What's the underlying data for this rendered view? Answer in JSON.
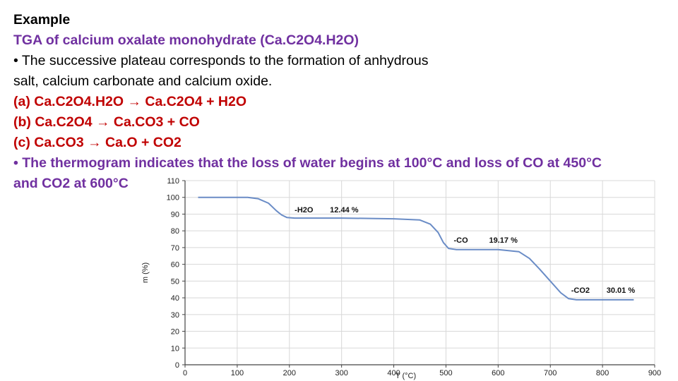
{
  "slide": {
    "heading": "Example",
    "subtitle": "TGA of calcium oxalate monohydrate (Ca.C2O4.H2O)",
    "bullet1_line1": "• The successive plateau corresponds to the formation of anhydrous",
    "bullet1_line2": "salt, calcium carbonate and calcium oxide.",
    "reaction_a": "(a) Ca.C2O4.H2O → Ca.C2O4 + H2O",
    "reaction_b": "(b) Ca.C2O4 → Ca.CO3 + CO",
    "reaction_c": "(c) Ca.CO3 → Ca.O + CO2",
    "bullet2_line1": "• The thermogram indicates that the loss of water begins at 100°C and loss of CO at 450°C",
    "bullet2_line2": "and CO2 at 600°C"
  },
  "colors": {
    "title_purple": "#7030a0",
    "reaction_red": "#c00000",
    "curve_blue": "#6a8cc6"
  },
  "chart_data": {
    "type": "line",
    "title": "",
    "xlabel": "T (°C)",
    "ylabel": "m (%)",
    "xlim": [
      0,
      900
    ],
    "ylim": [
      0,
      110
    ],
    "x_ticks": [
      "0",
      "100",
      "200",
      "300",
      "400",
      "500",
      "600",
      "700",
      "800",
      "900"
    ],
    "y_ticks": [
      "0",
      "10",
      "20",
      "30",
      "40",
      "50",
      "60",
      "70",
      "80",
      "90",
      "100",
      "110"
    ],
    "grid": true,
    "series": [
      {
        "x": [
          25,
          120,
          140,
          160,
          175,
          185,
          195,
          210,
          300,
          400,
          450,
          470,
          485,
          495,
          505,
          520,
          600,
          640,
          660,
          680,
          700,
          720,
          735,
          750,
          800,
          860
        ],
        "values": [
          100,
          100,
          99.2,
          96.5,
          92,
          89.5,
          88,
          87.6,
          87.6,
          87.2,
          86.5,
          84,
          79,
          73,
          69.5,
          68.8,
          68.8,
          67.5,
          63.5,
          57,
          50,
          43,
          39.5,
          38.8,
          38.8,
          38.8
        ]
      }
    ],
    "annotations": [
      {
        "label": "-H2O",
        "value_label": "12.44 %",
        "x": 210,
        "y": 91
      },
      {
        "label": "-CO",
        "value_label": "19.17 %",
        "x": 515,
        "y": 73
      },
      {
        "label": "-CO2",
        "value_label": "30.01 %",
        "x": 740,
        "y": 43
      }
    ]
  }
}
